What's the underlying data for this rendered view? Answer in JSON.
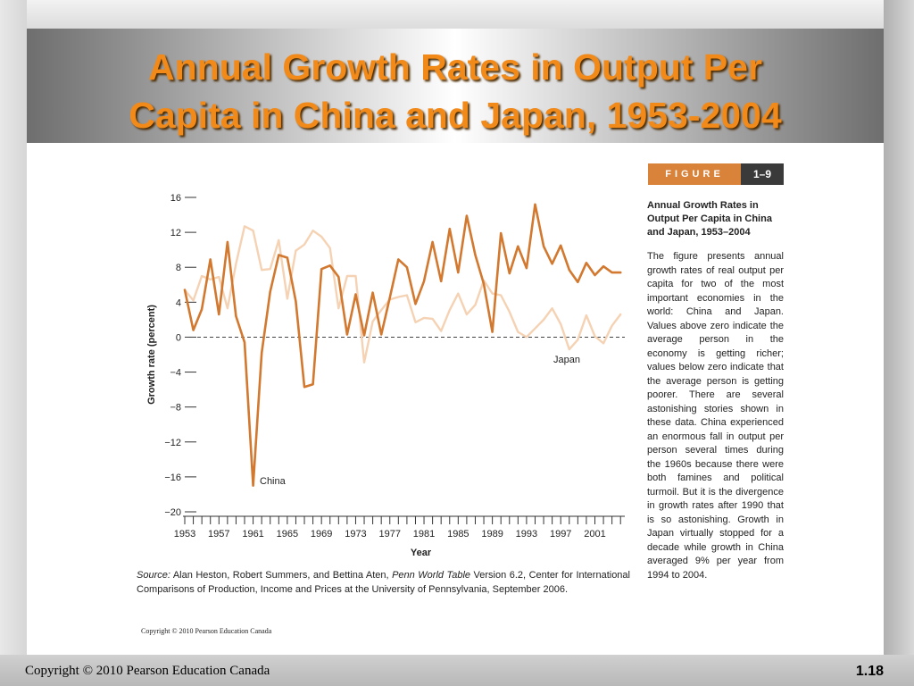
{
  "slide": {
    "title_line1": "Annual Growth Rates in Output Per",
    "title_line2": "Capita in China and Japan, 1953-2004",
    "footer_copyright": "Copyright © 2010 Pearson Education Canada",
    "slide_number": "1.18",
    "title_color": "#f28a1a"
  },
  "figure": {
    "badge_word": "FIGURE",
    "badge_number": "1–9",
    "caption_title": "Annual Growth Rates in Output Per Capita in China and Japan, 1953–2004",
    "caption_body": "The figure presents annual growth rates of real output per capita for two of the most important economies in the world: China and Japan. Values above zero indicate the average person in the economy is getting richer; values below zero indicate that the average person is getting poorer. There are several astonishing stories shown in these data. China experienced an enormous fall in output per person several times during the 1960s because there were both famines and political turmoil. But it is the divergence in growth rates after 1990 that is so astonishing. Growth in Japan virtually stopped for a decade while growth in China averaged 9% per year from 1994 to 2004.",
    "source_label": "Source:",
    "source_text_1": " Alan Heston, Robert Summers, and Bettina Aten, ",
    "source_italic": "Penn World Table",
    "source_text_2": " Version 6.2, Center for International Comparisons of Production, Income and Prices at the University of Pennsylvania, September 2006.",
    "inner_copyright": "Copyright © 2010 Pearson Education Canada"
  },
  "chart_data": {
    "type": "line",
    "xlabel": "Year",
    "ylabel": "Growth rate (percent)",
    "xlim": [
      1953,
      2004
    ],
    "ylim": [
      -20,
      16
    ],
    "y_ticks": [
      16,
      12,
      8,
      4,
      0,
      -4,
      -8,
      -12,
      -16,
      -20
    ],
    "y_tick_labels": [
      "16",
      "12",
      "8",
      "4",
      "0",
      "−4",
      "−8",
      "−12",
      "−16",
      "−20"
    ],
    "x_tick_labels": [
      1953,
      1957,
      1961,
      1965,
      1969,
      1973,
      1977,
      1981,
      1985,
      1989,
      1993,
      1997,
      2001
    ],
    "zero_line": "dashed",
    "series": [
      {
        "name": "China",
        "color": "#d2782f",
        "x": [
          1953,
          1954,
          1955,
          1956,
          1957,
          1958,
          1959,
          1960,
          1961,
          1962,
          1963,
          1964,
          1965,
          1966,
          1967,
          1968,
          1969,
          1970,
          1971,
          1972,
          1973,
          1974,
          1975,
          1976,
          1977,
          1978,
          1979,
          1980,
          1981,
          1982,
          1983,
          1984,
          1985,
          1986,
          1987,
          1988,
          1989,
          1990,
          1991,
          1992,
          1993,
          1994,
          1995,
          1996,
          1997,
          1998,
          1999,
          2000,
          2001,
          2002,
          2003,
          2004
        ],
        "values": [
          5.4,
          0.8,
          3.2,
          8.9,
          2.6,
          10.9,
          2.4,
          -0.6,
          -17.0,
          -1.8,
          5.2,
          9.4,
          9.1,
          4.1,
          -5.7,
          -5.4,
          7.8,
          8.2,
          6.9,
          0.3,
          4.9,
          0.2,
          5.1,
          0.3,
          4.5,
          8.9,
          8.0,
          3.8,
          6.4,
          10.9,
          6.4,
          12.4,
          7.4,
          13.9,
          9.4,
          6.1,
          0.6,
          11.9,
          7.3,
          10.4,
          7.9,
          15.2,
          10.4,
          8.4,
          10.5,
          7.7,
          6.3,
          8.5,
          7.1,
          8.1,
          7.4,
          7.4
        ]
      },
      {
        "name": "Japan",
        "color": "#f5d2b3",
        "x": [
          1953,
          1954,
          1955,
          1956,
          1957,
          1958,
          1959,
          1960,
          1961,
          1962,
          1963,
          1964,
          1965,
          1966,
          1967,
          1968,
          1969,
          1970,
          1971,
          1972,
          1973,
          1974,
          1975,
          1976,
          1977,
          1978,
          1979,
          1980,
          1981,
          1982,
          1983,
          1984,
          1985,
          1986,
          1987,
          1988,
          1989,
          1990,
          1991,
          1992,
          1993,
          1994,
          1995,
          1996,
          1997,
          1998,
          1999,
          2000,
          2001,
          2002,
          2003,
          2004
        ],
        "values": [
          5.4,
          4.2,
          7.0,
          6.6,
          6.9,
          3.3,
          8.4,
          12.7,
          12.2,
          7.7,
          7.8,
          11.1,
          4.4,
          9.9,
          10.6,
          12.2,
          11.5,
          10.2,
          3.3,
          7.0,
          7.0,
          -2.9,
          1.8,
          3.1,
          4.3,
          4.6,
          4.8,
          1.7,
          2.2,
          2.1,
          0.7,
          3.1,
          5.0,
          2.6,
          3.7,
          6.5,
          5.0,
          4.8,
          2.9,
          0.6,
          0.0,
          1.0,
          2.0,
          3.3,
          1.5,
          -1.4,
          -0.3,
          2.5,
          0.1,
          -0.7,
          1.3,
          2.6
        ]
      }
    ],
    "annotations": [
      "China",
      "Japan"
    ]
  }
}
